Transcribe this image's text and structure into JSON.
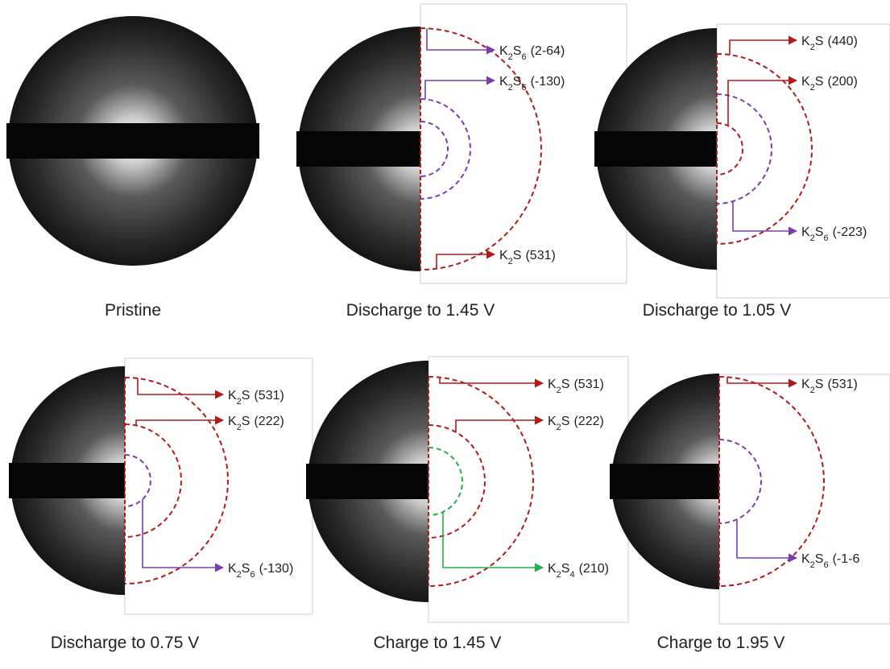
{
  "panels": [
    {
      "caption": "Pristine",
      "labels": []
    },
    {
      "caption": "Discharge to 1.45 V",
      "labels": [
        {
          "formula": [
            "K",
            "2",
            "S",
            "6"
          ],
          "plane": "(2-64)"
        },
        {
          "formula": [
            "K",
            "2",
            "S",
            "6"
          ],
          "plane": "(-130)"
        },
        {
          "formula": [
            "K",
            "2",
            "S"
          ],
          "plane": "(531)"
        }
      ]
    },
    {
      "caption": "Discharge to 1.05 V",
      "labels": [
        {
          "formula": [
            "K",
            "2",
            "S"
          ],
          "plane": "(440)"
        },
        {
          "formula": [
            "K",
            "2",
            "S"
          ],
          "plane": "(200)"
        },
        {
          "formula": [
            "K",
            "2",
            "S",
            "6"
          ],
          "plane": "(-223)"
        }
      ]
    },
    {
      "caption": "Discharge to 0.75 V",
      "labels": [
        {
          "formula": [
            "K",
            "2",
            "S"
          ],
          "plane": "(531)"
        },
        {
          "formula": [
            "K",
            "2",
            "S"
          ],
          "plane": "(222)"
        },
        {
          "formula": [
            "K",
            "2",
            "S",
            "6"
          ],
          "plane": "(-130)"
        }
      ]
    },
    {
      "caption": "Charge to 1.45 V",
      "labels": [
        {
          "formula": [
            "K",
            "2",
            "S"
          ],
          "plane": "(531)"
        },
        {
          "formula": [
            "K",
            "2",
            "S"
          ],
          "plane": "(222)"
        },
        {
          "formula": [
            "K",
            "2",
            "S",
            "4"
          ],
          "plane": "(210)"
        }
      ]
    },
    {
      "caption": "Charge to 1.95 V",
      "labels": [
        {
          "formula": [
            "K",
            "2",
            "S"
          ],
          "plane": "(531)"
        },
        {
          "formula": [
            "K",
            "2",
            "S",
            "6"
          ],
          "plane": "(-1-6"
        }
      ]
    }
  ]
}
